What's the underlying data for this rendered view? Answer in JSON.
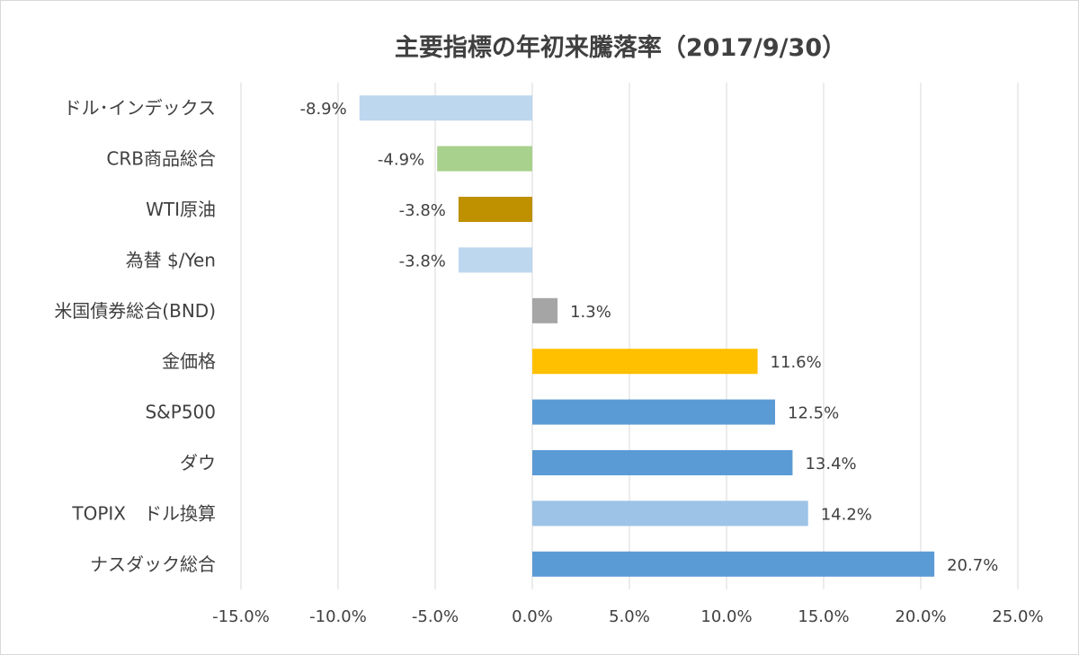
{
  "chart_data": {
    "type": "bar",
    "orientation": "horizontal",
    "title": "主要指標の年初来騰落率（2017/9/30）",
    "xlabel": "",
    "ylabel": "",
    "xlim": [
      -15,
      25
    ],
    "xticks": [
      -15,
      -10,
      -5,
      0,
      5,
      10,
      15,
      20,
      25
    ],
    "xtick_labels": [
      "-15.0%",
      "-10.0%",
      "-5.0%",
      "0.0%",
      "5.0%",
      "10.0%",
      "15.0%",
      "20.0%",
      "25.0%"
    ],
    "grid": "vertical",
    "legend": "none",
    "categories": [
      "ドル･インデックス",
      "CRB商品総合",
      "WTI原油",
      "為替 $/Yen",
      "米国債券総合(BND)",
      "金価格",
      "S&P500",
      "ダウ",
      "TOPIX　ドル換算",
      "ナスダック総合"
    ],
    "values": [
      -8.9,
      -4.9,
      -3.8,
      -3.8,
      1.3,
      11.6,
      12.5,
      13.4,
      14.2,
      20.7
    ],
    "value_labels": [
      "-8.9%",
      "-4.9%",
      "-3.8%",
      "-3.8%",
      "1.3%",
      "11.6%",
      "12.5%",
      "13.4%",
      "14.2%",
      "20.7%"
    ],
    "colors": [
      "#bdd7ee",
      "#a9d18e",
      "#bf9000",
      "#bdd7ee",
      "#a5a5a5",
      "#ffc000",
      "#5b9bd5",
      "#5b9bd5",
      "#9dc3e6",
      "#5b9bd5"
    ]
  }
}
